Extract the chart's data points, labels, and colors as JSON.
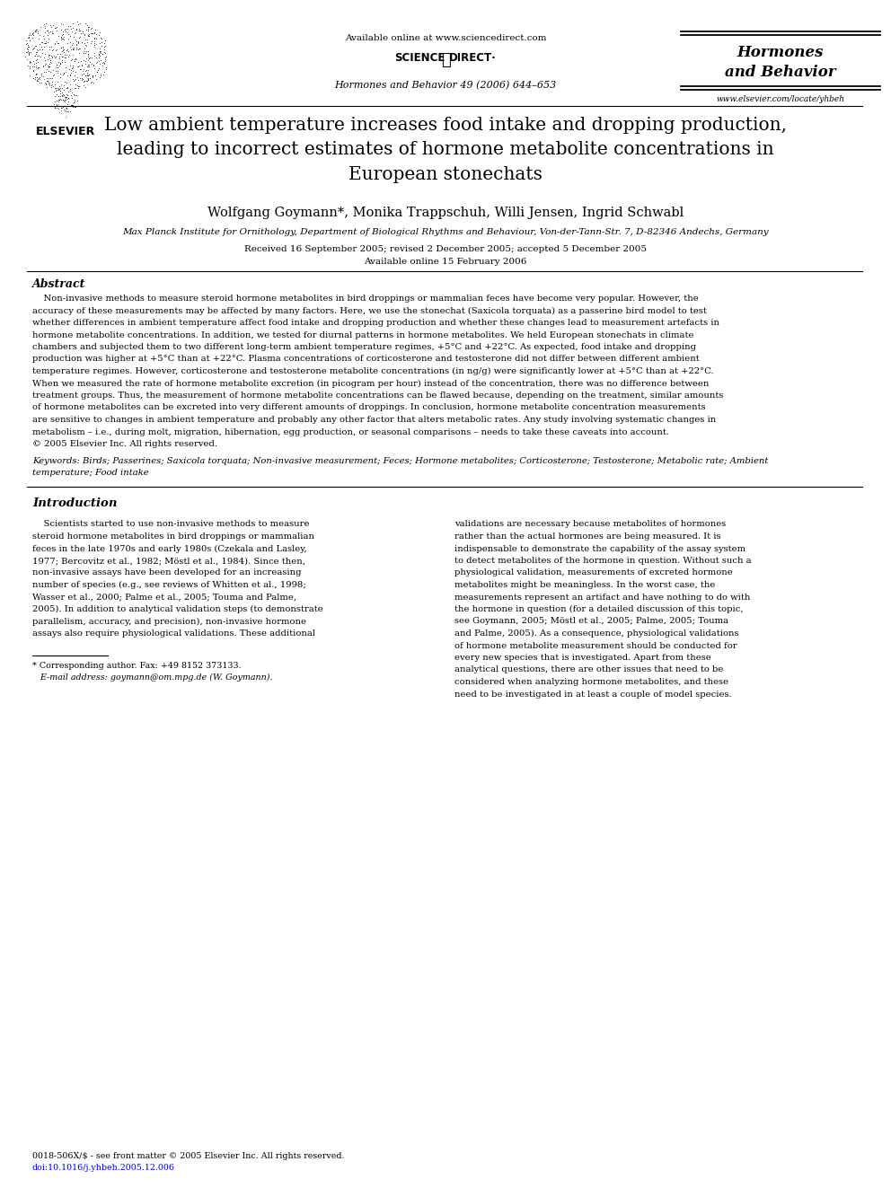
{
  "bg_color": "#ffffff",
  "header_available_online": "Available online at www.sciencedirect.com",
  "journal_name_header": "Hormones and Behavior 49 (2006) 644–653",
  "journal_title_right": "Hormones\nand Behavior",
  "journal_url_right": "www.elsevier.com/locate/yhbeh",
  "paper_title": "Low ambient temperature increases food intake and dropping production,\nleading to incorrect estimates of hormone metabolite concentrations in\nEuropean stonechats",
  "authors": "Wolfgang Goymann*, Monika Trappschuh, Willi Jensen, Ingrid Schwabl",
  "affiliation": "Max Planck Institute for Ornithology, Department of Biological Rhythms and Behaviour, Von-der-Tann-Str. 7, D-82346 Andechs, Germany",
  "received": "Received 16 September 2005; revised 2 December 2005; accepted 5 December 2005",
  "available_online": "Available online 15 February 2006",
  "abstract_title": "Abstract",
  "abstract_lines": [
    "    Non-invasive methods to measure steroid hormone metabolites in bird droppings or mammalian feces have become very popular. However, the",
    "accuracy of these measurements may be affected by many factors. Here, we use the stonechat (Saxicola torquata) as a passerine bird model to test",
    "whether differences in ambient temperature affect food intake and dropping production and whether these changes lead to measurement artefacts in",
    "hormone metabolite concentrations. In addition, we tested for diurnal patterns in hormone metabolites. We held European stonechats in climate",
    "chambers and subjected them to two different long-term ambient temperature regimes, +5°C and +22°C. As expected, food intake and dropping",
    "production was higher at +5°C than at +22°C. Plasma concentrations of corticosterone and testosterone did not differ between different ambient",
    "temperature regimes. However, corticosterone and testosterone metabolite concentrations (in ng/g) were significantly lower at +5°C than at +22°C.",
    "When we measured the rate of hormone metabolite excretion (in picogram per hour) instead of the concentration, there was no difference between",
    "treatment groups. Thus, the measurement of hormone metabolite concentrations can be flawed because, depending on the treatment, similar amounts",
    "of hormone metabolites can be excreted into very different amounts of droppings. In conclusion, hormone metabolite concentration measurements",
    "are sensitive to changes in ambient temperature and probably any other factor that alters metabolic rates. Any study involving systematic changes in",
    "metabolism – i.e., during molt, migration, hibernation, egg production, or seasonal comparisons – needs to take these caveats into account.",
    "© 2005 Elsevier Inc. All rights reserved."
  ],
  "keywords_line1": "Keywords: Birds; Passerines; Saxicola torquata; Non-invasive measurement; Feces; Hormone metabolites; Corticosterone; Testosterone; Metabolic rate; Ambient",
  "keywords_line2": "temperature; Food intake",
  "intro_title": "Introduction",
  "intro_col1_lines": [
    "    Scientists started to use non-invasive methods to measure",
    "steroid hormone metabolites in bird droppings or mammalian",
    "feces in the late 1970s and early 1980s (Czekala and Lasley,",
    "1977; Bercovitz et al., 1982; Möstl et al., 1984). Since then,",
    "non-invasive assays have been developed for an increasing",
    "number of species (e.g., see reviews of Whitten et al., 1998;",
    "Wasser et al., 2000; Palme et al., 2005; Touma and Palme,",
    "2005). In addition to analytical validation steps (to demonstrate",
    "parallelism, accuracy, and precision), non-invasive hormone",
    "assays also require physiological validations. These additional"
  ],
  "intro_col2_lines": [
    "validations are necessary because metabolites of hormones",
    "rather than the actual hormones are being measured. It is",
    "indispensable to demonstrate the capability of the assay system",
    "to detect metabolites of the hormone in question. Without such a",
    "physiological validation, measurements of excreted hormone",
    "metabolites might be meaningless. In the worst case, the",
    "measurements represent an artifact and have nothing to do with",
    "the hormone in question (for a detailed discussion of this topic,",
    "see Goymann, 2005; Möstl et al., 2005; Palme, 2005; Touma",
    "and Palme, 2005). As a consequence, physiological validations",
    "of hormone metabolite measurement should be conducted for",
    "every new species that is investigated. Apart from these",
    "analytical questions, there are other issues that need to be",
    "considered when analyzing hormone metabolites, and these",
    "need to be investigated in at least a couple of model species."
  ],
  "footnote_star": "* Corresponding author. Fax: +49 8152 373133.",
  "footnote_email": "   E-mail address: goymann@om.mpg.de (W. Goymann).",
  "footer_issn": "0018-506X/$ - see front matter © 2005 Elsevier Inc. All rights reserved.",
  "footer_doi": "doi:10.1016/j.yhbeh.2005.12.006",
  "link_color": "#0000cc"
}
